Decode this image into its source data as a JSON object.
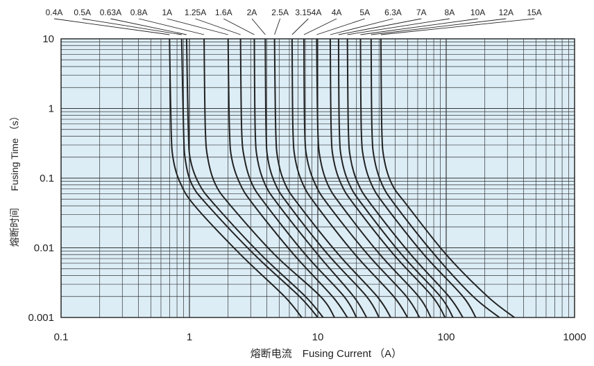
{
  "chart_data": {
    "type": "line",
    "title": "",
    "xlabel": "熔断电流　Fusing Current （A）",
    "ylabel_cn": "熔断时间",
    "ylabel_en": "Fusing Time （s）",
    "x_scale": "log",
    "y_scale": "log",
    "xlim": [
      0.1,
      1000
    ],
    "ylim": [
      0.001,
      10
    ],
    "x_ticks": [
      0.1,
      1,
      10,
      100,
      1000
    ],
    "x_tick_labels": [
      "0.1",
      "1",
      "10",
      "100",
      "1000"
    ],
    "y_ticks": [
      0.001,
      0.01,
      0.1,
      1,
      10
    ],
    "y_tick_labels": [
      "0.001",
      "0.01",
      "0.1",
      "1",
      "10"
    ],
    "grid": true,
    "legend": "top, leader lines to each curve",
    "colors": {
      "plot_background": "#dcedf6",
      "grid": "#333333",
      "curve": "#222222"
    },
    "series": [
      {
        "name": "0.4A",
        "values": [
          [
            0.7,
            10
          ],
          [
            0.72,
            0.5
          ],
          [
            0.75,
            0.18
          ],
          [
            0.85,
            0.085
          ],
          [
            1.1,
            0.04
          ],
          [
            2.5,
            0.008
          ],
          [
            5.5,
            0.002
          ],
          [
            7.5,
            0.001
          ]
        ]
      },
      {
        "name": "0.5A",
        "values": [
          [
            0.87,
            10
          ],
          [
            0.9,
            0.5
          ],
          [
            0.93,
            0.18
          ],
          [
            1.05,
            0.08
          ],
          [
            1.4,
            0.04
          ],
          [
            3.2,
            0.008
          ],
          [
            7.2,
            0.002
          ],
          [
            10,
            0.001
          ]
        ]
      },
      {
        "name": "0.63A",
        "values": [
          [
            0.95,
            10
          ],
          [
            0.98,
            0.5
          ],
          [
            1.02,
            0.18
          ],
          [
            1.2,
            0.08
          ],
          [
            1.6,
            0.04
          ],
          [
            3.6,
            0.008
          ],
          [
            8,
            0.002
          ],
          [
            11,
            0.001
          ]
        ]
      },
      {
        "name": "0.8A",
        "values": [
          [
            1.3,
            10
          ],
          [
            1.33,
            0.5
          ],
          [
            1.4,
            0.18
          ],
          [
            1.6,
            0.08
          ],
          [
            2.1,
            0.04
          ],
          [
            4.6,
            0.008
          ],
          [
            10.5,
            0.002
          ],
          [
            13.5,
            0.001
          ]
        ]
      },
      {
        "name": "1A",
        "values": [
          [
            2.0,
            10
          ],
          [
            2.05,
            0.5
          ],
          [
            2.15,
            0.18
          ],
          [
            2.5,
            0.08
          ],
          [
            3.2,
            0.04
          ],
          [
            6.5,
            0.008
          ],
          [
            13,
            0.002
          ],
          [
            17,
            0.001
          ]
        ]
      },
      {
        "name": "1.25A",
        "values": [
          [
            2.5,
            10
          ],
          [
            2.55,
            0.5
          ],
          [
            2.7,
            0.18
          ],
          [
            3.1,
            0.08
          ],
          [
            4,
            0.04
          ],
          [
            8,
            0.008
          ],
          [
            16,
            0.002
          ],
          [
            20,
            0.001
          ]
        ]
      },
      {
        "name": "1.6A",
        "values": [
          [
            3.2,
            10
          ],
          [
            3.25,
            0.5
          ],
          [
            3.4,
            0.18
          ],
          [
            3.9,
            0.08
          ],
          [
            5,
            0.04
          ],
          [
            10,
            0.008
          ],
          [
            19,
            0.002
          ],
          [
            24,
            0.001
          ]
        ]
      },
      {
        "name": "2A",
        "values": [
          [
            3.9,
            10
          ],
          [
            3.95,
            0.5
          ],
          [
            4.1,
            0.18
          ],
          [
            4.7,
            0.08
          ],
          [
            6,
            0.04
          ],
          [
            12,
            0.008
          ],
          [
            24,
            0.002
          ],
          [
            30,
            0.001
          ]
        ]
      },
      {
        "name": "2.5A",
        "values": [
          [
            4.6,
            10
          ],
          [
            4.7,
            0.5
          ],
          [
            4.9,
            0.18
          ],
          [
            5.6,
            0.08
          ],
          [
            7.2,
            0.04
          ],
          [
            14.5,
            0.008
          ],
          [
            29,
            0.002
          ],
          [
            37,
            0.001
          ]
        ]
      },
      {
        "name": "3.154A",
        "values": [
          [
            6.3,
            10
          ],
          [
            6.4,
            0.5
          ],
          [
            6.7,
            0.18
          ],
          [
            7.7,
            0.08
          ],
          [
            9.8,
            0.04
          ],
          [
            19.5,
            0.008
          ],
          [
            39,
            0.002
          ],
          [
            50,
            0.001
          ]
        ]
      },
      {
        "name": "4A",
        "values": [
          [
            7.8,
            10
          ],
          [
            7.9,
            0.5
          ],
          [
            8.3,
            0.18
          ],
          [
            9.6,
            0.08
          ],
          [
            12.2,
            0.04
          ],
          [
            24.5,
            0.008
          ],
          [
            49,
            0.002
          ],
          [
            62,
            0.001
          ]
        ]
      },
      {
        "name": "5A",
        "values": [
          [
            9.8,
            10
          ],
          [
            10,
            0.5
          ],
          [
            10.5,
            0.18
          ],
          [
            12,
            0.08
          ],
          [
            15.3,
            0.04
          ],
          [
            30.5,
            0.008
          ],
          [
            61,
            0.002
          ],
          [
            76,
            0.001
          ]
        ]
      },
      {
        "name": "6.3A",
        "values": [
          [
            12.5,
            10
          ],
          [
            12.7,
            0.5
          ],
          [
            13.3,
            0.18
          ],
          [
            15.3,
            0.08
          ],
          [
            19.5,
            0.04
          ],
          [
            39,
            0.008
          ],
          [
            78,
            0.002
          ],
          [
            98,
            0.001
          ]
        ]
      },
      {
        "name": "7A",
        "values": [
          [
            14.5,
            10
          ],
          [
            14.7,
            0.5
          ],
          [
            15.4,
            0.18
          ],
          [
            17.7,
            0.08
          ],
          [
            22.6,
            0.04
          ],
          [
            45,
            0.008
          ],
          [
            90,
            0.002
          ],
          [
            113,
            0.001
          ]
        ]
      },
      {
        "name": "8A",
        "values": [
          [
            17,
            10
          ],
          [
            17.3,
            0.5
          ],
          [
            18.1,
            0.18
          ],
          [
            20.8,
            0.08
          ],
          [
            26.5,
            0.04
          ],
          [
            53,
            0.008
          ],
          [
            105,
            0.002
          ],
          [
            135,
            0.001
          ]
        ]
      },
      {
        "name": "10A",
        "values": [
          [
            21.5,
            10
          ],
          [
            21.8,
            0.5
          ],
          [
            22.9,
            0.18
          ],
          [
            26.3,
            0.08
          ],
          [
            33.5,
            0.04
          ],
          [
            67,
            0.008
          ],
          [
            135,
            0.002
          ],
          [
            170,
            0.001
          ]
        ]
      },
      {
        "name": "12A",
        "values": [
          [
            26,
            10
          ],
          [
            26.4,
            0.5
          ],
          [
            27.7,
            0.18
          ],
          [
            31.8,
            0.08
          ],
          [
            40.5,
            0.04
          ],
          [
            81,
            0.008
          ],
          [
            162,
            0.002
          ],
          [
            260,
            0.001
          ]
        ]
      },
      {
        "name": "15A",
        "values": [
          [
            31,
            10
          ],
          [
            31.5,
            0.5
          ],
          [
            33,
            0.18
          ],
          [
            38,
            0.08
          ],
          [
            50,
            0.04
          ],
          [
            100,
            0.008
          ],
          [
            210,
            0.002
          ],
          [
            340,
            0.001
          ]
        ]
      }
    ]
  }
}
